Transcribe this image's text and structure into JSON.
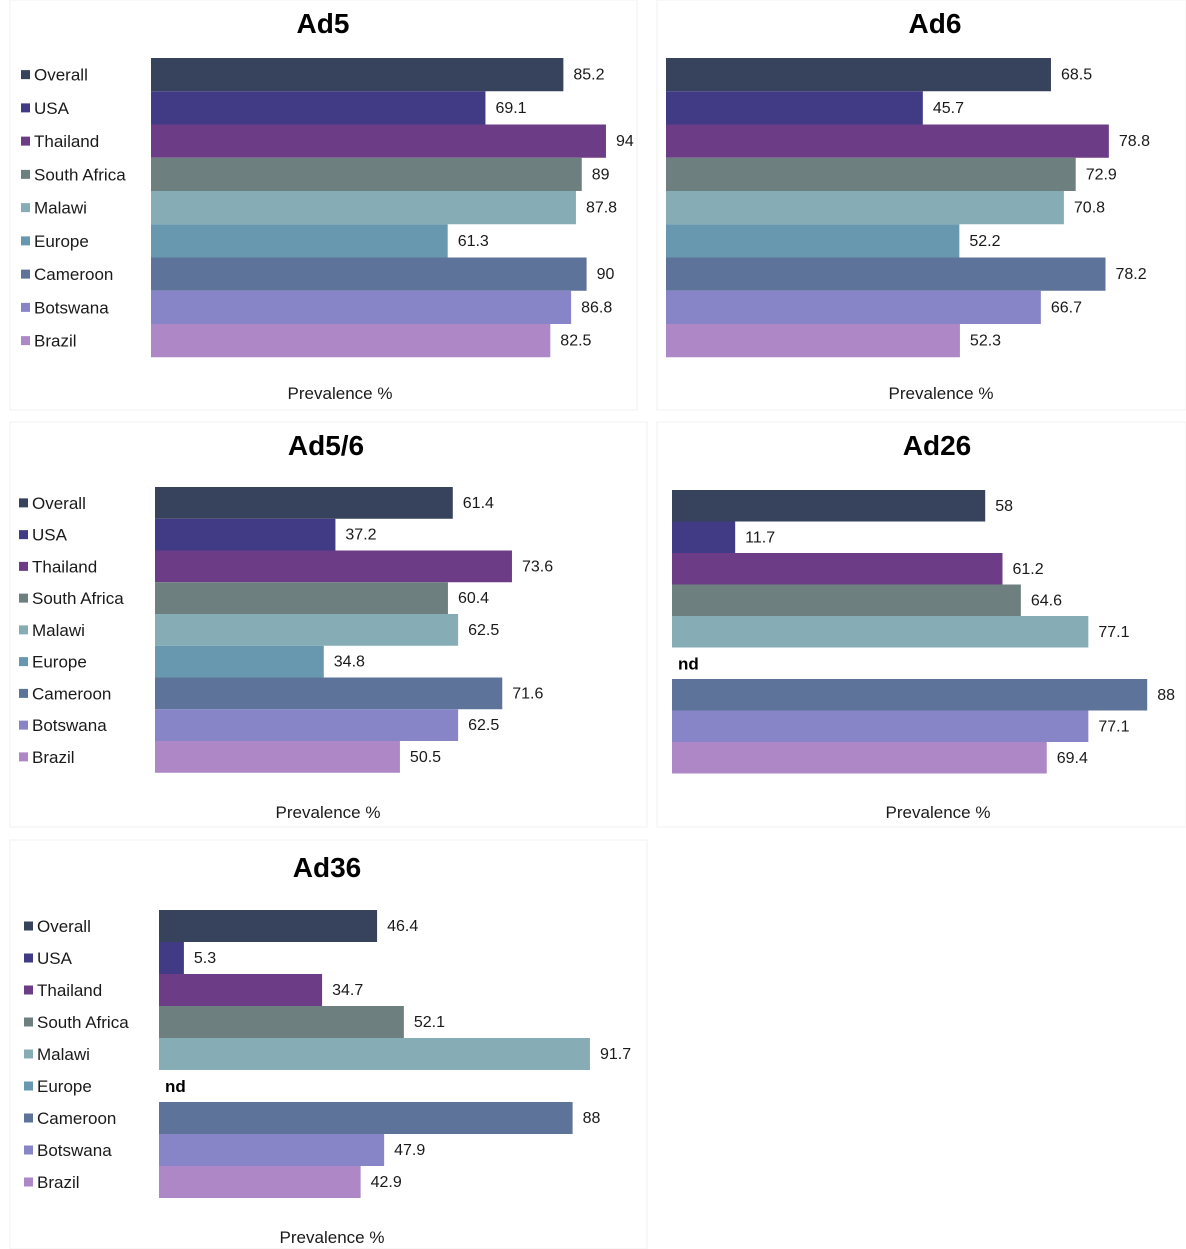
{
  "chart_data": [
    {
      "type": "bar",
      "orientation": "horizontal",
      "title": "Ad5",
      "xlabel": "Prevalence %",
      "categories": [
        "Overall",
        "USA",
        "Thailand",
        "South Africa",
        "Malawi",
        "Europe",
        "Cameroon",
        "Botswana",
        "Brazil"
      ],
      "values": [
        85.2,
        69.1,
        94,
        89,
        87.8,
        61.3,
        90,
        86.8,
        82.5
      ],
      "value_labels": [
        "85.2",
        "69.1",
        "94",
        "89",
        "87.8",
        "61.3",
        "90",
        "86.8",
        "82.5"
      ],
      "xlim": [
        0,
        100
      ],
      "grid": false,
      "legend": "left"
    },
    {
      "type": "bar",
      "orientation": "horizontal",
      "title": "Ad6",
      "xlabel": "Prevalence %",
      "categories": [
        "Overall",
        "USA",
        "Thailand",
        "South Africa",
        "Malawi",
        "Europe",
        "Cameroon",
        "Botswana",
        "Brazil"
      ],
      "values": [
        68.5,
        45.7,
        78.8,
        72.9,
        70.8,
        52.2,
        78.2,
        66.7,
        52.3
      ],
      "value_labels": [
        "68.5",
        "45.7",
        "78.8",
        "72.9",
        "70.8",
        "52.2",
        "78.2",
        "66.7",
        "52.3"
      ],
      "xlim": [
        0,
        100
      ],
      "grid": false,
      "legend": "none"
    },
    {
      "type": "bar",
      "orientation": "horizontal",
      "title": "Ad5/6",
      "xlabel": "Prevalence %",
      "categories": [
        "Overall",
        "USA",
        "Thailand",
        "South Africa",
        "Malawi",
        "Europe",
        "Cameroon",
        "Botswana",
        "Brazil"
      ],
      "values": [
        61.4,
        37.2,
        73.6,
        60.4,
        62.5,
        34.8,
        71.6,
        62.5,
        50.5
      ],
      "value_labels": [
        "61.4",
        "37.2",
        "73.6",
        "60.4",
        "62.5",
        "34.8",
        "71.6",
        "62.5",
        "50.5"
      ],
      "xlim": [
        0,
        100
      ],
      "grid": false,
      "legend": "left"
    },
    {
      "type": "bar",
      "orientation": "horizontal",
      "title": "Ad26",
      "xlabel": "Prevalence %",
      "categories": [
        "Overall",
        "USA",
        "Thailand",
        "South Africa",
        "Malawi",
        "Europe",
        "Cameroon",
        "Botswana",
        "Brazil"
      ],
      "values": [
        58,
        11.7,
        61.2,
        64.6,
        77.1,
        null,
        88,
        77.1,
        69.4
      ],
      "value_labels": [
        "58",
        "11.7",
        "61.2",
        "64.6",
        "77.1",
        "nd",
        "88",
        "77.1",
        "69.4"
      ],
      "xlim": [
        0,
        100
      ],
      "grid": false,
      "legend": "none"
    },
    {
      "type": "bar",
      "orientation": "horizontal",
      "title": "Ad36",
      "xlabel": "Prevalence %",
      "categories": [
        "Overall",
        "USA",
        "Thailand",
        "South Africa",
        "Malawi",
        "Europe",
        "Cameroon",
        "Botswana",
        "Brazil"
      ],
      "values": [
        46.4,
        5.3,
        34.7,
        52.1,
        91.7,
        null,
        88,
        47.9,
        42.9
      ],
      "value_labels": [
        "46.4",
        "5.3",
        "34.7",
        "52.1",
        "91.7",
        "nd",
        "88",
        "47.9",
        "42.9"
      ],
      "xlim": [
        0,
        100
      ],
      "grid": false,
      "legend": "left"
    }
  ],
  "colors": {
    "Overall": "#37425c",
    "USA": "#413b86",
    "Thailand": "#6c3c86",
    "South Africa": "#6e7f80",
    "Malawi": "#86adb5",
    "Europe": "#6898b0",
    "Cameroon": "#5e7399",
    "Botswana": "#8784c8",
    "Brazil": "#ae87c7"
  }
}
